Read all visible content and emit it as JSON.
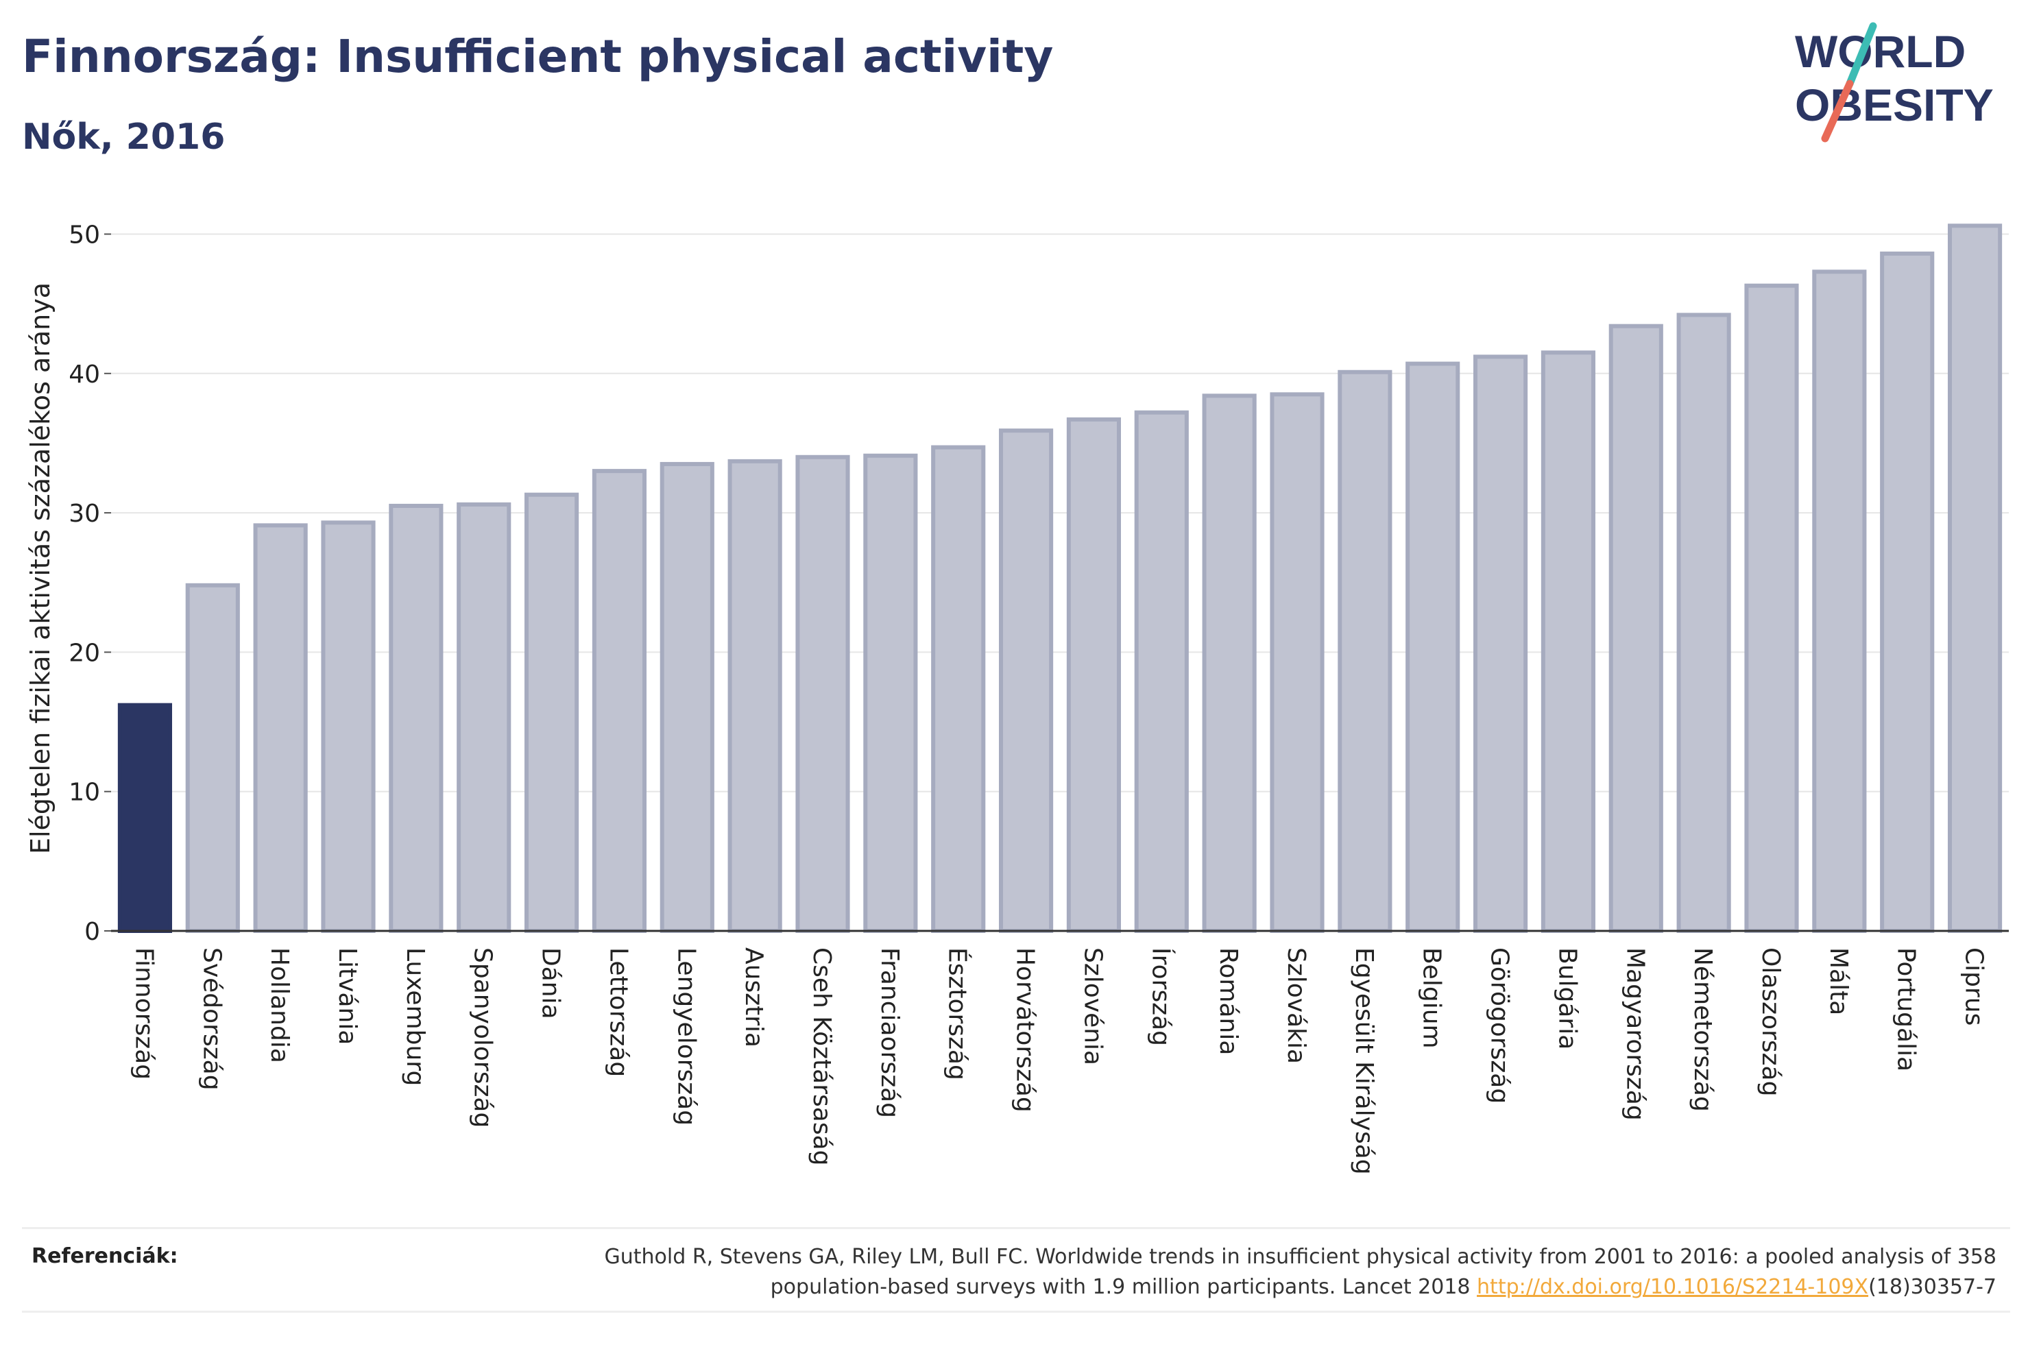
{
  "header": {
    "title": "Finnország: Insufficient physical activity",
    "subtitle": "Nők, 2016"
  },
  "logo": {
    "line1": "WORLD",
    "line2": "OBESITY"
  },
  "colors": {
    "highlight_bar": "#2b3663",
    "other_bar_fill": "#c0c3d1",
    "other_bar_stroke": "#a6abbf",
    "gridline": "#e6e6e6",
    "axis": "#333333",
    "logo_text": "#2b3663",
    "logo_teal": "#3cbcb4",
    "logo_coral": "#e86a57",
    "link": "#f2a93b"
  },
  "chart_data": {
    "type": "bar",
    "title": "Finnország: Insufficient physical activity",
    "subtitle": "Nők, 2016",
    "ylabel": "Elégtelen fizikai aktivitás százalékos aránya",
    "xlabel": "",
    "ylim": [
      0,
      52
    ],
    "yticks": [
      0,
      10,
      20,
      30,
      40,
      50
    ],
    "grid": true,
    "highlight": "Finnország",
    "categories": [
      "Finnország",
      "Svédország",
      "Hollandia",
      "Litvánia",
      "Luxemburg",
      "Spanyolország",
      "Dánia",
      "Lettország",
      "Lengyelország",
      "Ausztria",
      "Cseh Köztársaság",
      "Franciaország",
      "Észtország",
      "Horvátország",
      "Szlovénia",
      "Írország",
      "Románia",
      "Szlovákia",
      "Egyesült Királyság",
      "Belgium",
      "Görögország",
      "Bulgária",
      "Magyarország",
      "Németország",
      "Olaszország",
      "Málta",
      "Portugália",
      "Ciprus"
    ],
    "values": [
      16.2,
      24.8,
      29.1,
      29.3,
      30.5,
      30.6,
      31.3,
      33.0,
      33.5,
      33.7,
      34.0,
      34.1,
      34.7,
      35.9,
      36.7,
      37.2,
      38.4,
      38.5,
      40.1,
      40.7,
      41.2,
      41.5,
      43.4,
      44.2,
      46.3,
      47.3,
      48.6,
      50.6
    ]
  },
  "references": {
    "label": "Referenciák:",
    "line1": "Guthold R, Stevens GA, Riley LM, Bull FC. Worldwide trends in insufficient physical activity from 2001 to 2016: a pooled analysis of 358",
    "line2_before": "population-based surveys with 1.9 million participants. Lancet 2018 ",
    "link_text": "http://dx.doi.org/10.1016/S2214-109X",
    "line2_after": "(18)30357-7"
  }
}
